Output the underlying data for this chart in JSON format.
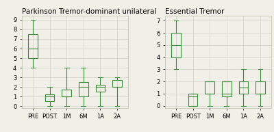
{
  "left_title": "Parkinson Tremor-dominant unilateral",
  "right_title": "Essential Tremor",
  "categories": [
    "PRE",
    "POST",
    "1M",
    "6M",
    "1A",
    "2A"
  ],
  "left_boxes": [
    {
      "whislo": 4.0,
      "q1": 5.0,
      "med": 6.0,
      "q3": 7.5,
      "whishi": 9.0
    },
    {
      "whislo": 0.0,
      "q1": 0.5,
      "med": 1.0,
      "q3": 1.25,
      "whishi": 2.0
    },
    {
      "whislo": 0.0,
      "q1": 1.0,
      "med": 1.0,
      "q3": 1.75,
      "whishi": 4.0
    },
    {
      "whislo": 0.0,
      "q1": 1.0,
      "med": 2.0,
      "q3": 2.5,
      "whishi": 4.0
    },
    {
      "whislo": 0.0,
      "q1": 1.5,
      "med": 2.0,
      "q3": 2.25,
      "whishi": 3.0
    },
    {
      "whislo": 0.0,
      "q1": 2.0,
      "med": 2.0,
      "q3": 2.75,
      "whishi": 3.0
    }
  ],
  "right_boxes": [
    {
      "whislo": 3.0,
      "q1": 4.0,
      "med": 5.0,
      "q3": 6.0,
      "whishi": 7.0
    },
    {
      "whislo": 0.0,
      "q1": 0.0,
      "med": 0.75,
      "q3": 1.0,
      "whishi": 1.0
    },
    {
      "whislo": 0.0,
      "q1": 1.0,
      "med": 1.0,
      "q3": 2.0,
      "whishi": 2.0
    },
    {
      "whislo": 0.0,
      "q1": 0.75,
      "med": 1.0,
      "q3": 2.0,
      "whishi": 2.0
    },
    {
      "whislo": 0.0,
      "q1": 1.0,
      "med": 1.5,
      "q3": 2.0,
      "whishi": 3.0
    },
    {
      "whislo": 0.0,
      "q1": 1.0,
      "med": 1.0,
      "q3": 2.0,
      "whishi": 3.0
    }
  ],
  "left_ylim": [
    -0.2,
    9.4
  ],
  "right_ylim": [
    -0.2,
    7.4
  ],
  "left_yticks": [
    0,
    1,
    2,
    3,
    4,
    5,
    6,
    7,
    8,
    9
  ],
  "right_yticks": [
    0,
    1,
    2,
    3,
    4,
    5,
    6,
    7
  ],
  "box_color": "#3a8c3a",
  "background_color": "#f0f0e8",
  "title_fontsize": 7.5,
  "tick_fontsize": 6.0,
  "grid_color": "#d0d0c8",
  "linewidth": 0.8
}
